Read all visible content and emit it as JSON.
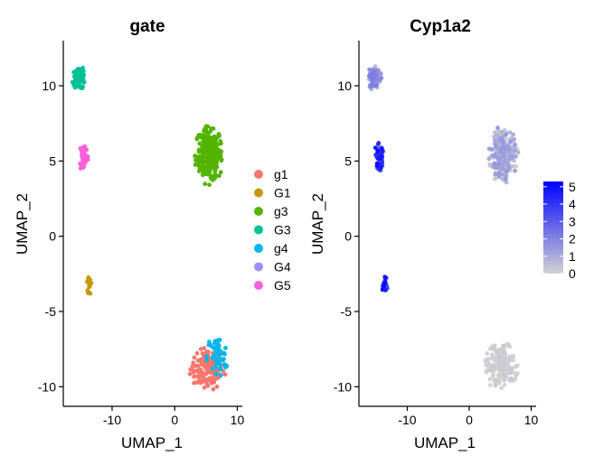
{
  "chart_data": [
    {
      "type": "scatter",
      "title": "gate",
      "xlabel": "UMAP_1",
      "ylabel": "UMAP_2",
      "xlim": [
        -17.8,
        10.8
      ],
      "ylim": [
        -11.3,
        13.0
      ],
      "xticks": [
        -10,
        0,
        10
      ],
      "xtick_labels": [
        "-10",
        "0",
        "10"
      ],
      "yticks": [
        10,
        5,
        0,
        -5,
        -10
      ],
      "ytick_labels": [
        "10",
        "5",
        "0",
        "-5",
        "-10"
      ],
      "grid": false,
      "legend_placement": "right",
      "series": [
        {
          "name": "g1",
          "color": "#F8766D",
          "clusters": [
            {
              "cx": 5.2,
              "cy": -8.8,
              "rx": 3.0,
              "ry": 1.5,
              "n": 140
            }
          ]
        },
        {
          "name": "G1",
          "color": "#C49A00",
          "clusters": [
            {
              "cx": -13.6,
              "cy": -3.2,
              "rx": 0.5,
              "ry": 1.0,
              "n": 18
            }
          ]
        },
        {
          "name": "g3",
          "color": "#53B400",
          "clusters": [
            {
              "cx": 5.5,
              "cy": 5.4,
              "rx": 2.4,
              "ry": 2.0,
              "n": 260
            }
          ]
        },
        {
          "name": "G3",
          "color": "#00C094",
          "clusters": [
            {
              "cx": -15.3,
              "cy": 10.5,
              "rx": 1.2,
              "ry": 0.8,
              "n": 90
            }
          ]
        },
        {
          "name": "g4",
          "color": "#00B6EB",
          "clusters": [
            {
              "cx": 6.8,
              "cy": -8.0,
              "rx": 1.8,
              "ry": 1.5,
              "n": 55
            }
          ]
        },
        {
          "name": "G4",
          "color": "#A58AFF",
          "clusters": []
        },
        {
          "name": "G5",
          "color": "#FB61D7",
          "clusters": [
            {
              "cx": -14.5,
              "cy": 5.3,
              "rx": 0.8,
              "ry": 1.1,
              "n": 45
            }
          ]
        }
      ]
    },
    {
      "type": "scatter",
      "title": "Cyp1a2",
      "xlabel": "UMAP_1",
      "ylabel": "UMAP_2",
      "xlim": [
        -17.8,
        10.8
      ],
      "ylim": [
        -11.3,
        13.0
      ],
      "xticks": [
        -10,
        0,
        10
      ],
      "xtick_labels": [
        "-10",
        "0",
        "10"
      ],
      "yticks": [
        10,
        5,
        0,
        -5,
        -10
      ],
      "ytick_labels": [
        "10",
        "5",
        "0",
        "-5",
        "-10"
      ],
      "grid": false,
      "colorbar": {
        "min": 0,
        "max": 5.3,
        "ticks": [
          0,
          1,
          2,
          3,
          4,
          5
        ],
        "tick_labels": [
          "0",
          "1",
          "2",
          "3",
          "4",
          "5"
        ],
        "low_color": "#D3D3D3",
        "high_color": "#0000FF"
      },
      "groups": [
        {
          "cx": 5.2,
          "cy": -8.6,
          "rx": 3.0,
          "ry": 1.7,
          "n": 190,
          "expr": [
            0.0,
            0.3
          ]
        },
        {
          "cx": 5.5,
          "cy": 5.4,
          "rx": 2.4,
          "ry": 2.0,
          "n": 260,
          "expr": [
            0.0,
            1.5
          ]
        },
        {
          "cx": -15.3,
          "cy": 10.5,
          "rx": 1.2,
          "ry": 0.8,
          "n": 90,
          "expr": [
            0.5,
            2.2
          ]
        },
        {
          "cx": -14.5,
          "cy": 5.3,
          "rx": 0.8,
          "ry": 1.1,
          "n": 45,
          "expr": [
            3.0,
            5.0
          ]
        },
        {
          "cx": -13.6,
          "cy": -3.2,
          "rx": 0.5,
          "ry": 1.0,
          "n": 18,
          "expr": [
            3.0,
            5.0
          ]
        }
      ]
    }
  ]
}
